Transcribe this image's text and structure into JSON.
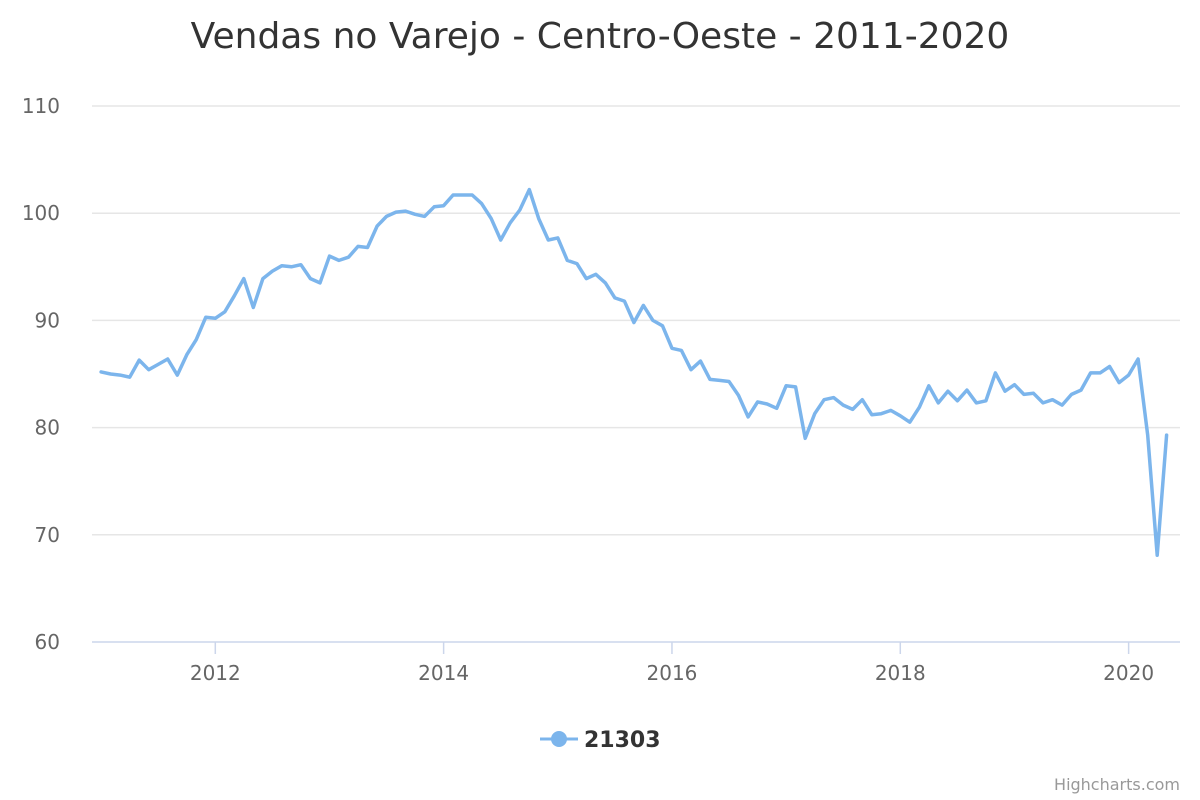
{
  "chart_data": {
    "type": "line",
    "title": "Vendas no Varejo - Centro-Oeste - 2011-2020",
    "xlabel": "",
    "ylabel": "",
    "xlim": [
      2010.92,
      2020.45
    ],
    "ylim": [
      60,
      110
    ],
    "y_ticks": [
      60,
      70,
      80,
      90,
      100,
      110
    ],
    "x_ticks": [
      2012,
      2014,
      2016,
      2018,
      2020
    ],
    "grid": true,
    "legend": "bottom-center",
    "colors": {
      "series": "#7cb5ec"
    },
    "series": [
      {
        "name": "21303",
        "x": [
          2011.0,
          2011.083,
          2011.167,
          2011.25,
          2011.333,
          2011.417,
          2011.5,
          2011.583,
          2011.667,
          2011.75,
          2011.833,
          2011.917,
          2012.0,
          2012.083,
          2012.167,
          2012.25,
          2012.333,
          2012.417,
          2012.5,
          2012.583,
          2012.667,
          2012.75,
          2012.833,
          2012.917,
          2013.0,
          2013.083,
          2013.167,
          2013.25,
          2013.333,
          2013.417,
          2013.5,
          2013.583,
          2013.667,
          2013.75,
          2013.833,
          2013.917,
          2014.0,
          2014.083,
          2014.167,
          2014.25,
          2014.333,
          2014.417,
          2014.5,
          2014.583,
          2014.667,
          2014.75,
          2014.833,
          2014.917,
          2015.0,
          2015.083,
          2015.167,
          2015.25,
          2015.333,
          2015.417,
          2015.5,
          2015.583,
          2015.667,
          2015.75,
          2015.833,
          2015.917,
          2016.0,
          2016.083,
          2016.167,
          2016.25,
          2016.333,
          2016.417,
          2016.5,
          2016.583,
          2016.667,
          2016.75,
          2016.833,
          2016.917,
          2017.0,
          2017.083,
          2017.167,
          2017.25,
          2017.333,
          2017.417,
          2017.5,
          2017.583,
          2017.667,
          2017.75,
          2017.833,
          2017.917,
          2018.0,
          2018.083,
          2018.167,
          2018.25,
          2018.333,
          2018.417,
          2018.5,
          2018.583,
          2018.667,
          2018.75,
          2018.833,
          2018.917,
          2019.0,
          2019.083,
          2019.167,
          2019.25,
          2019.333,
          2019.417,
          2019.5,
          2019.583,
          2019.667,
          2019.75,
          2019.833,
          2019.917,
          2020.0,
          2020.083,
          2020.167,
          2020.25,
          2020.333
        ],
        "values": [
          85.2,
          85.0,
          84.9,
          84.7,
          86.3,
          85.4,
          85.9,
          86.4,
          84.9,
          86.8,
          88.2,
          90.3,
          90.2,
          90.8,
          92.3,
          93.9,
          91.2,
          93.9,
          94.6,
          95.1,
          95.0,
          95.2,
          93.9,
          93.5,
          96.0,
          95.6,
          95.9,
          96.9,
          96.8,
          98.8,
          99.7,
          100.1,
          100.2,
          99.9,
          99.7,
          100.6,
          100.7,
          101.7,
          101.7,
          101.7,
          100.9,
          99.5,
          97.5,
          99.1,
          100.3,
          102.2,
          99.5,
          97.5,
          97.7,
          95.6,
          95.3,
          93.9,
          94.3,
          93.5,
          92.1,
          91.8,
          89.8,
          91.4,
          90.0,
          89.5,
          87.4,
          87.2,
          85.4,
          86.2,
          84.5,
          84.4,
          84.3,
          83.0,
          81.0,
          82.4,
          82.2,
          81.8,
          83.9,
          83.8,
          79.0,
          81.3,
          82.6,
          82.8,
          82.1,
          81.7,
          82.6,
          81.2,
          81.3,
          81.6,
          81.1,
          80.5,
          81.9,
          83.9,
          82.3,
          83.4,
          82.5,
          83.5,
          82.3,
          82.5,
          85.1,
          83.4,
          84.0,
          83.1,
          83.2,
          82.3,
          82.6,
          82.1,
          83.1,
          83.5,
          85.1,
          85.1,
          85.7,
          84.2,
          84.9,
          86.4,
          79.3,
          68.1,
          79.3
        ]
      }
    ]
  },
  "credits": "Highcharts.com"
}
